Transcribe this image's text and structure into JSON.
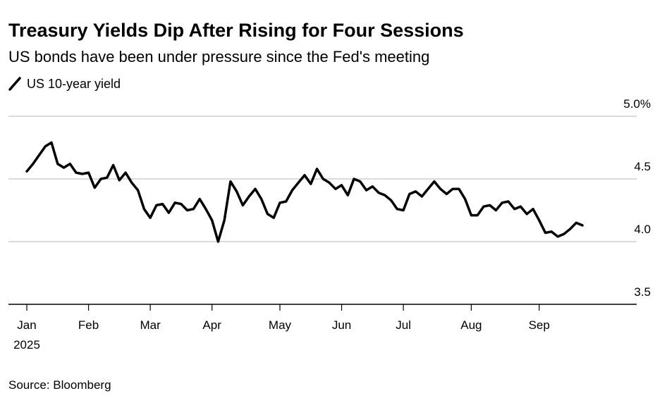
{
  "chart_data": {
    "type": "line",
    "title": "Treasury Yields Dip After Rising for Four Sessions",
    "subtitle": "US bonds have been under pressure since the Fed's meeting",
    "source": "Source: Bloomberg",
    "x_year_label": "2025",
    "categories": [
      "Jan",
      null,
      null,
      null,
      null,
      null,
      null,
      null,
      null,
      null,
      "Feb",
      null,
      null,
      null,
      null,
      null,
      null,
      null,
      null,
      null,
      "Mar",
      null,
      null,
      null,
      null,
      null,
      null,
      null,
      null,
      null,
      "Apr",
      null,
      null,
      null,
      null,
      null,
      null,
      null,
      null,
      null,
      null,
      "May",
      null,
      null,
      null,
      null,
      null,
      null,
      null,
      null,
      null,
      "Jun",
      null,
      null,
      null,
      null,
      null,
      null,
      null,
      null,
      null,
      "Jul",
      null,
      null,
      null,
      null,
      null,
      null,
      null,
      null,
      null,
      null,
      "Aug",
      null,
      null,
      null,
      null,
      null,
      null,
      null,
      null,
      null,
      null,
      "Sep",
      null,
      null,
      null,
      null,
      null,
      null,
      null
    ],
    "series": [
      {
        "name": "US 10-year yield",
        "color": "#000000",
        "values": [
          4.56,
          4.62,
          4.69,
          4.76,
          4.79,
          4.62,
          4.59,
          4.62,
          4.55,
          4.54,
          4.55,
          4.43,
          4.5,
          4.51,
          4.61,
          4.49,
          4.55,
          4.47,
          4.41,
          4.26,
          4.19,
          4.29,
          4.3,
          4.23,
          4.31,
          4.3,
          4.25,
          4.26,
          4.34,
          4.26,
          4.17,
          4.0,
          4.17,
          4.48,
          4.4,
          4.29,
          4.36,
          4.42,
          4.34,
          4.22,
          4.19,
          4.31,
          4.32,
          4.41,
          4.47,
          4.53,
          4.46,
          4.58,
          4.5,
          4.47,
          4.42,
          4.45,
          4.37,
          4.5,
          4.48,
          4.41,
          4.44,
          4.39,
          4.37,
          4.33,
          4.26,
          4.25,
          4.38,
          4.4,
          4.36,
          4.42,
          4.48,
          4.42,
          4.38,
          4.42,
          4.42,
          4.34,
          4.21,
          4.21,
          4.28,
          4.29,
          4.25,
          4.31,
          4.32,
          4.26,
          4.28,
          4.22,
          4.26,
          4.17,
          4.07,
          4.08,
          4.04,
          4.06,
          4.1,
          4.15,
          4.13
        ]
      }
    ],
    "ylim": [
      3.5,
      5.0
    ],
    "yticks": [
      3.5,
      {
        "value": 4,
        "label": "4.0"
      },
      4.5,
      {
        "value": 5,
        "label": "5.0%"
      }
    ],
    "grid": true
  }
}
